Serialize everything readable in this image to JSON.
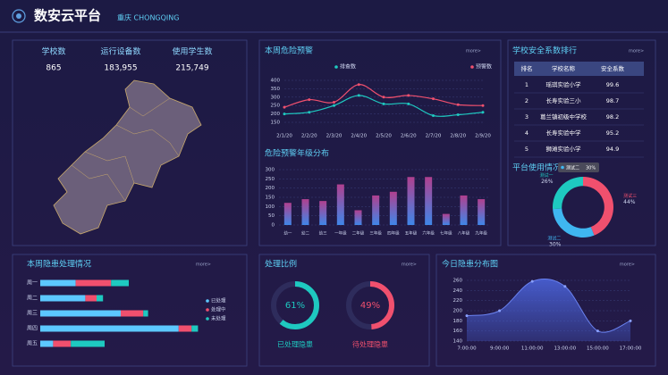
{
  "header": {
    "title": "数安云平台",
    "subtitle": "重庆 CHONGQING"
  },
  "more": "more>",
  "stats": [
    {
      "label": "学校数",
      "value": "865"
    },
    {
      "label": "运行设备数",
      "value": "183,955"
    },
    {
      "label": "使用学生数",
      "value": "215,749"
    }
  ],
  "table": {
    "title": "学校安全系数排行",
    "columns": [
      "排名",
      "学校名称",
      "安全系数"
    ],
    "rows": [
      [
        1,
        "瑶琪实验小学",
        99.6
      ],
      [
        2,
        "长寿实验三小",
        98.7
      ],
      [
        3,
        "葛兰镇初级中学校",
        98.2
      ],
      [
        4,
        "长寿实验中学",
        95.2
      ],
      [
        5,
        "狮滩实验小学",
        94.9
      ]
    ]
  },
  "chart_data": [
    {
      "type": "line",
      "title": "本周危险预警",
      "categories": [
        "2/1/20",
        "2/2/20",
        "2/3/20",
        "2/4/20",
        "2/5/20",
        "2/6/20",
        "2/7/20",
        "2/8/20",
        "2/9/20"
      ],
      "series": [
        {
          "name": "排查数",
          "color": "#1ec9c0",
          "values": [
            200,
            210,
            250,
            310,
            260,
            260,
            190,
            195,
            210
          ]
        },
        {
          "name": "预警数",
          "color": "#f0506e",
          "values": [
            240,
            285,
            270,
            375,
            300,
            310,
            290,
            255,
            250
          ]
        }
      ],
      "ylim": [
        150,
        400
      ],
      "yticks": [
        150,
        200,
        250,
        300,
        350,
        400
      ],
      "smooth": true
    },
    {
      "type": "bar",
      "title": "危险预警年级分布",
      "categories": [
        "幼一",
        "幼二",
        "幼三",
        "一年级",
        "二年级",
        "三年级",
        "四年级",
        "五年级",
        "六年级",
        "七年级",
        "八年级",
        "九年级"
      ],
      "values": [
        120,
        140,
        130,
        220,
        80,
        160,
        180,
        260,
        260,
        60,
        160,
        140
      ],
      "colors": [
        "#b0408f",
        "#3f86e8"
      ],
      "ylim": [
        0,
        300
      ],
      "yticks": [
        0,
        50,
        100,
        150,
        200,
        250,
        300
      ]
    },
    {
      "type": "pie",
      "title": "平台使用情况",
      "categories": [
        "测试三",
        "测试二",
        "测试一"
      ],
      "values": [
        44,
        30,
        26
      ],
      "value_labels": [
        "44%",
        "30%",
        "26%"
      ],
      "colors": [
        "#f0506e",
        "#3fb6f0",
        "#1ec9c0"
      ],
      "tooltip_index": 1
    },
    {
      "type": "hbar",
      "title": "本周隐患处理情况",
      "categories": [
        "周一",
        "周二",
        "周三",
        "周四",
        "周五"
      ],
      "series": [
        {
          "name": "已处理",
          "color": "#5cc8ff",
          "values": [
            22,
            28,
            50,
            86,
            8
          ]
        },
        {
          "name": "处理中",
          "color": "#f0506e",
          "values": [
            22,
            7,
            14,
            8,
            11
          ]
        },
        {
          "name": "未处理",
          "color": "#1ec9c0",
          "values": [
            11,
            4,
            3,
            4,
            21
          ]
        }
      ],
      "stacked": true,
      "xlim": [
        0,
        100
      ]
    },
    {
      "type": "gauge",
      "title": "处理比例",
      "categories": [
        "已处理隐患",
        "待处理隐患"
      ],
      "values": [
        61,
        49
      ],
      "value_labels": [
        "61%",
        "49%"
      ],
      "colors": [
        "#1ec9c0",
        "#f0506e"
      ],
      "ylim": [
        0,
        100
      ]
    },
    {
      "type": "area",
      "title": "今日隐患分布图",
      "categories": [
        "7:00:00",
        "9:00:00",
        "11:00:00",
        "13:00:00",
        "15:00:00",
        "17:00:00"
      ],
      "values": [
        190,
        200,
        258,
        248,
        160,
        180
      ],
      "color": "#4a62d8",
      "ylim": [
        140,
        260
      ],
      "yticks": [
        140,
        160,
        180,
        200,
        220,
        240,
        260
      ],
      "smooth": true
    }
  ]
}
